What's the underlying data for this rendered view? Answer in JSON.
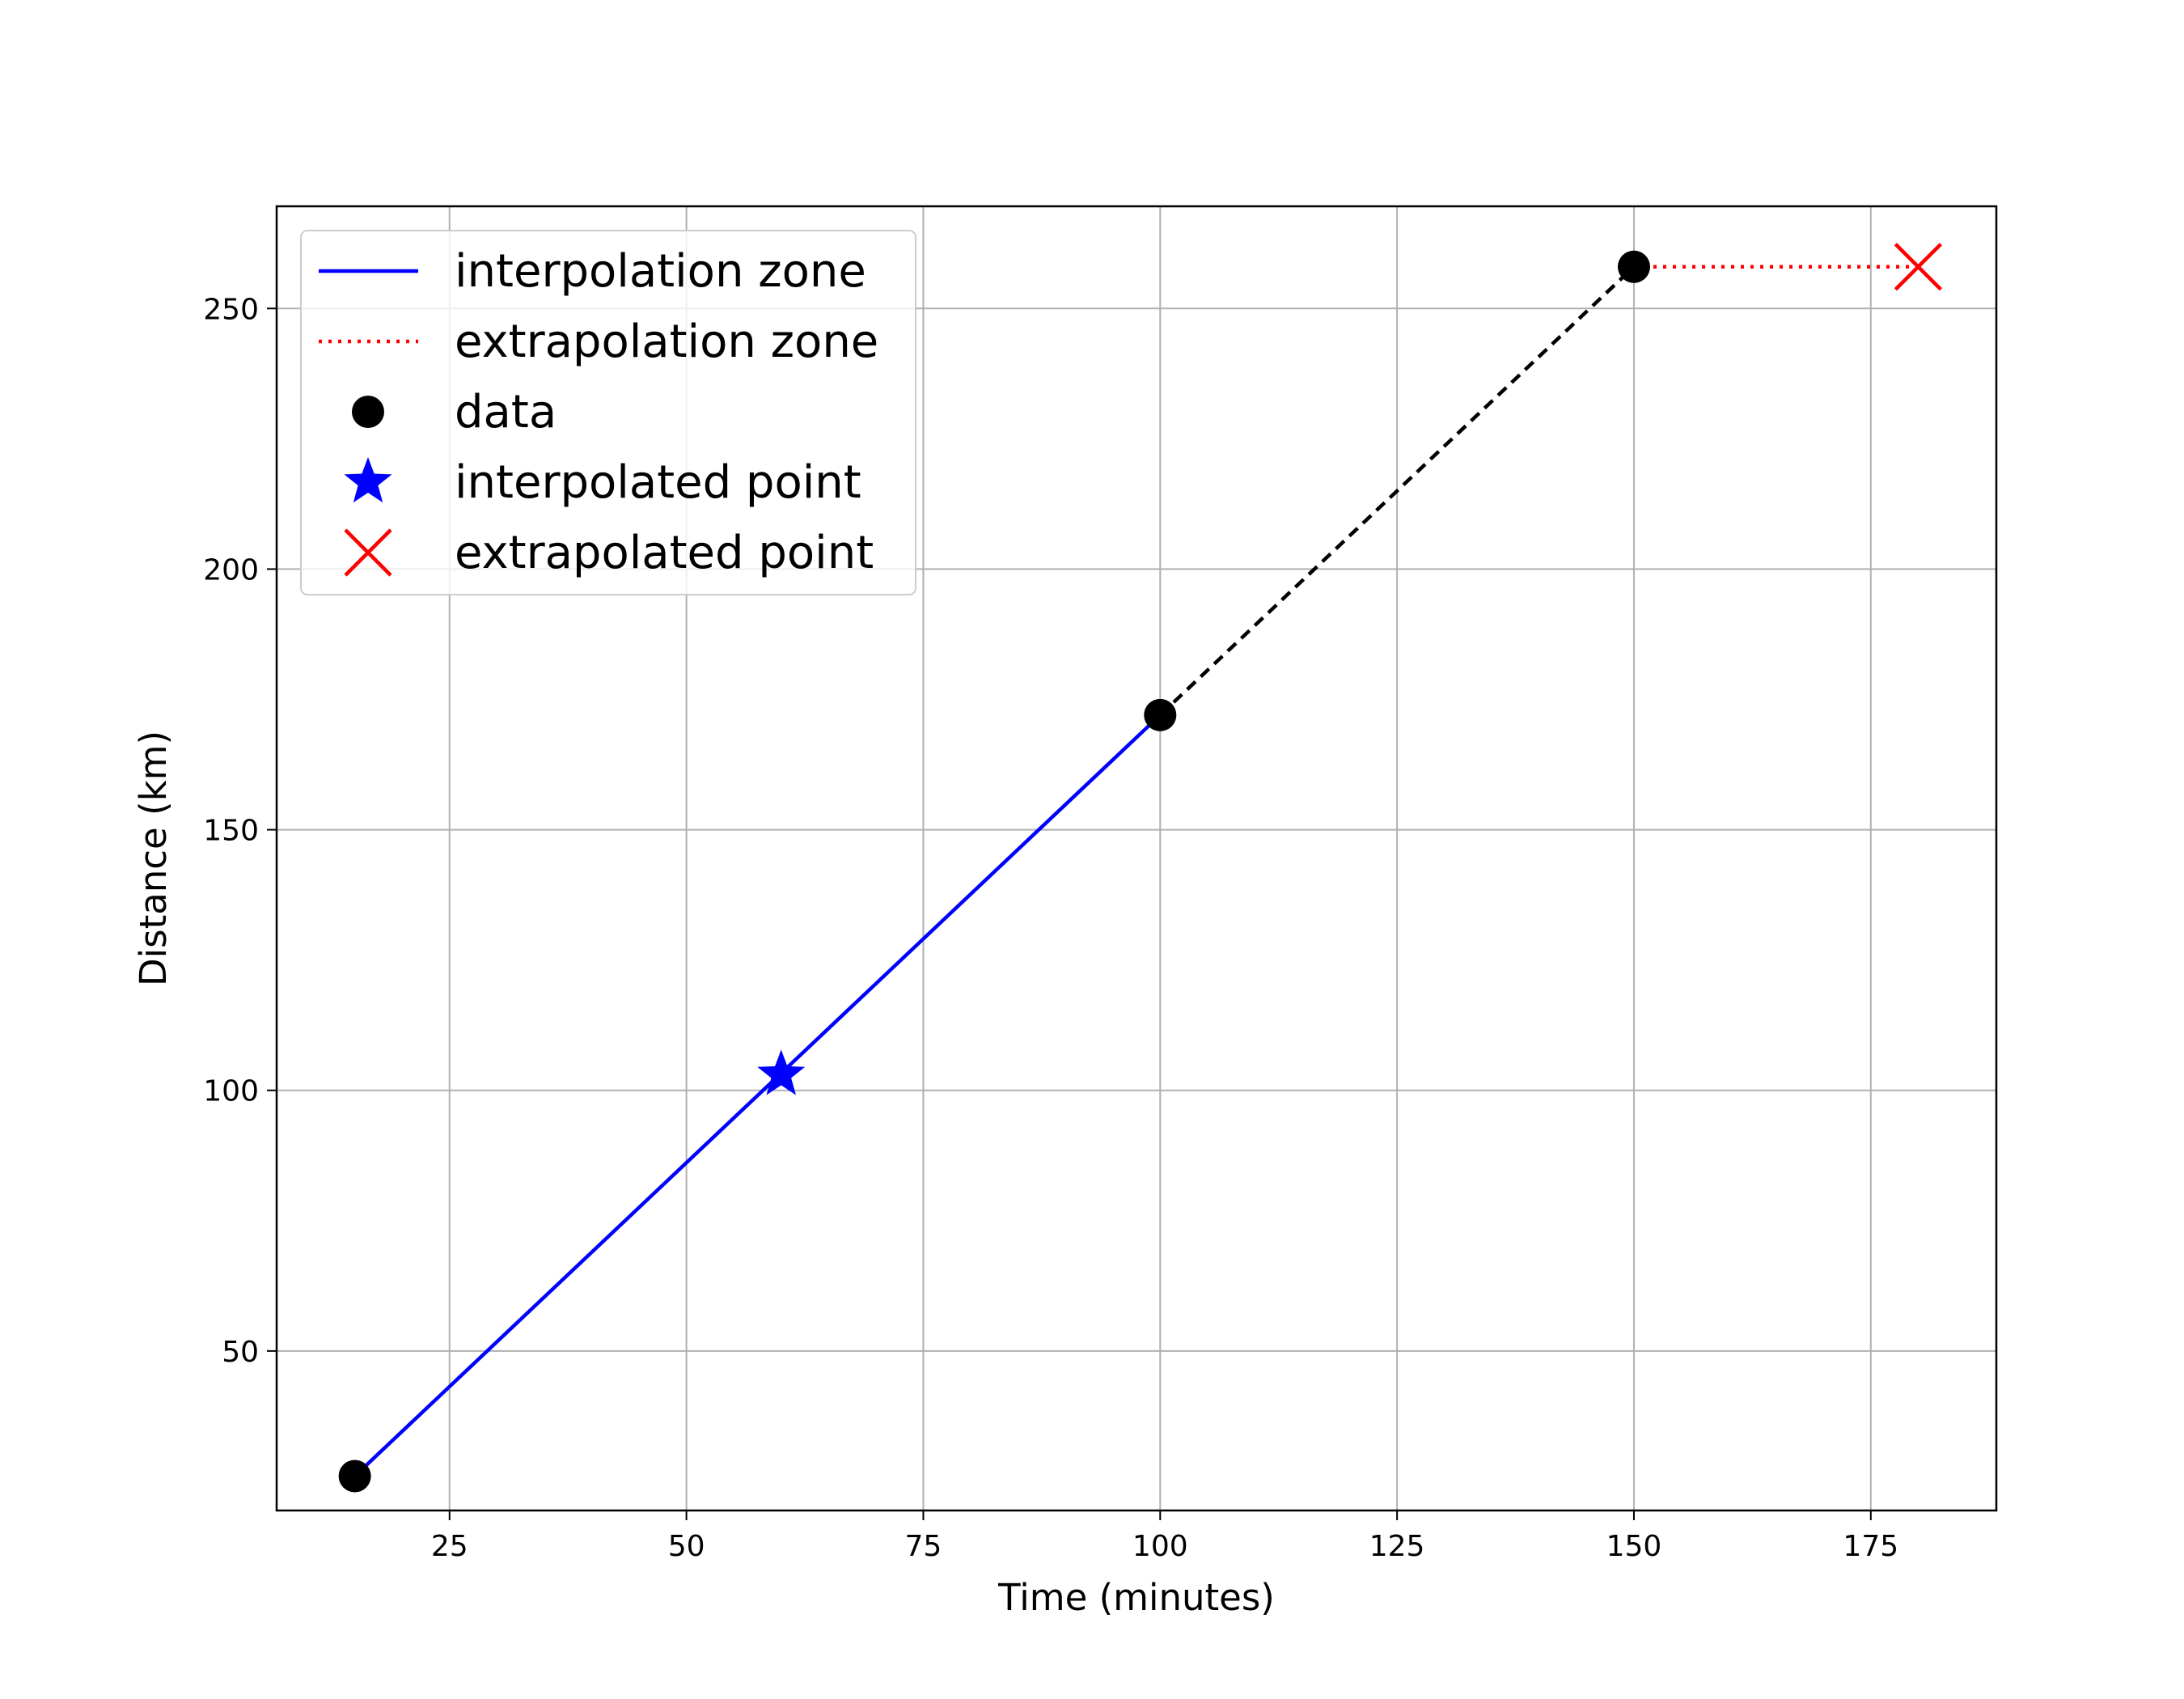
{
  "chart_data": {
    "type": "line",
    "title": "",
    "xlabel": "Time (minutes)",
    "ylabel": "Distance (km)",
    "xlim": [
      6.75,
      188.25
    ],
    "ylim": [
      19.4,
      269.6
    ],
    "xticks": [
      25,
      50,
      75,
      100,
      125,
      150,
      175
    ],
    "yticks": [
      50,
      100,
      150,
      200,
      250
    ],
    "grid": true,
    "legend_position": "top-left",
    "series": [
      {
        "name": "interpolation zone",
        "kind": "line",
        "style": "solid",
        "color": "#0000ff",
        "x": [
          15,
          100
        ],
        "y": [
          26,
          172
        ]
      },
      {
        "name": "extrapolation zone",
        "kind": "line",
        "style": "dotted",
        "color": "#ff0000",
        "x": [
          150,
          180
        ],
        "y": [
          258,
          258
        ]
      },
      {
        "name": "",
        "kind": "line",
        "style": "dashed",
        "color": "#000000",
        "x": [
          100,
          150
        ],
        "y": [
          172,
          258
        ]
      },
      {
        "name": "data",
        "kind": "scatter",
        "marker": "circle",
        "color": "#000000",
        "x": [
          15,
          100,
          150
        ],
        "y": [
          26,
          172,
          258
        ]
      },
      {
        "name": "interpolated point",
        "kind": "scatter",
        "marker": "star",
        "color": "#0000ff",
        "x": [
          60
        ],
        "y": [
          103
        ]
      },
      {
        "name": "extrapolated point",
        "kind": "scatter",
        "marker": "x",
        "color": "#ff0000",
        "x": [
          180
        ],
        "y": [
          258
        ]
      }
    ],
    "legend": [
      "interpolation zone",
      "extrapolation zone",
      "data",
      "interpolated point",
      "extrapolated point"
    ]
  }
}
